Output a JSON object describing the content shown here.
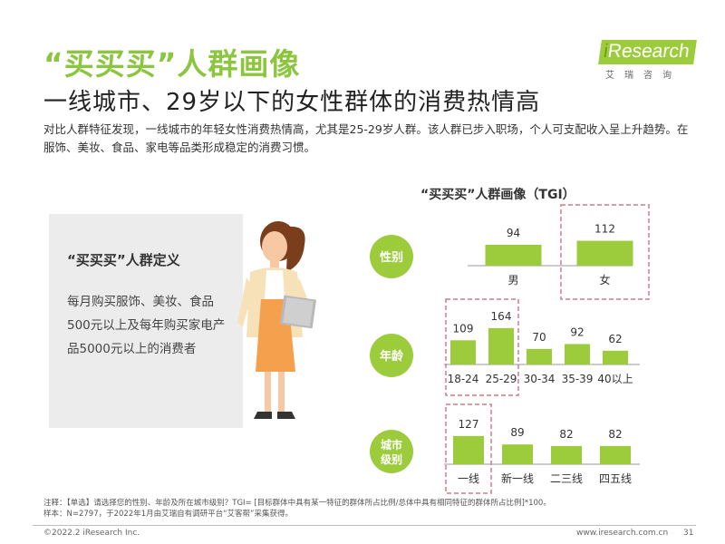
{
  "header": {
    "title_line1": "“买买买”人群画像",
    "title_line2": "一线城市、29岁以下的女性群体的消费热情高",
    "description": "对比人群特征发现，一线城市的年轻女性消费热情高，尤其是25-29岁人群。该人群已步入职场，个人可支配收入呈上升趋势。在服饰、美妆、食品、家电等品类形成稳定的消费习惯。"
  },
  "logo": {
    "brand_prefix": "i",
    "brand_rest": "Research",
    "subtitle": "艾瑞咨询"
  },
  "definition": {
    "title": "“买买买”人群定义",
    "text": "每月购买服饰、美妆、食品 500元以上及每年购买家电产品5000元以上的消费者"
  },
  "chart_data": {
    "type": "bar",
    "title": "“买买买”人群画像（TGI）",
    "bar_color": "#9ccc3c",
    "highlight_border_color": "#d47a8a",
    "groups": [
      {
        "label": "性别",
        "categories": [
          "男",
          "女"
        ],
        "values": [
          94,
          112
        ],
        "highlighted": [
          "女"
        ]
      },
      {
        "label": "年龄",
        "categories": [
          "18-24",
          "25-29",
          "30-34",
          "35-39",
          "40以上"
        ],
        "values": [
          109,
          164,
          70,
          92,
          62
        ],
        "highlighted": [
          "18-24",
          "25-29"
        ]
      },
      {
        "label": "城市级别",
        "categories": [
          "一线",
          "新一线",
          "二三线",
          "四五线"
        ],
        "values": [
          127,
          89,
          82,
          82
        ],
        "highlighted": [
          "一线"
        ]
      }
    ]
  },
  "footer": {
    "note_line1": "注释：【单选】请选择您的性别、年龄及所在城市级别？TGI= [目标群体中具有某一特征的群体所占比例/总体中具有相同特征的群体所占比例]*100。",
    "note_line2": "样本：N=2797，于2022年1月由艾瑞自有调研平台“艾客帮”采集获得。",
    "copyright": "©2022.2 iResearch Inc.",
    "website": "www.iresearch.com.cn",
    "page_number": "31"
  }
}
